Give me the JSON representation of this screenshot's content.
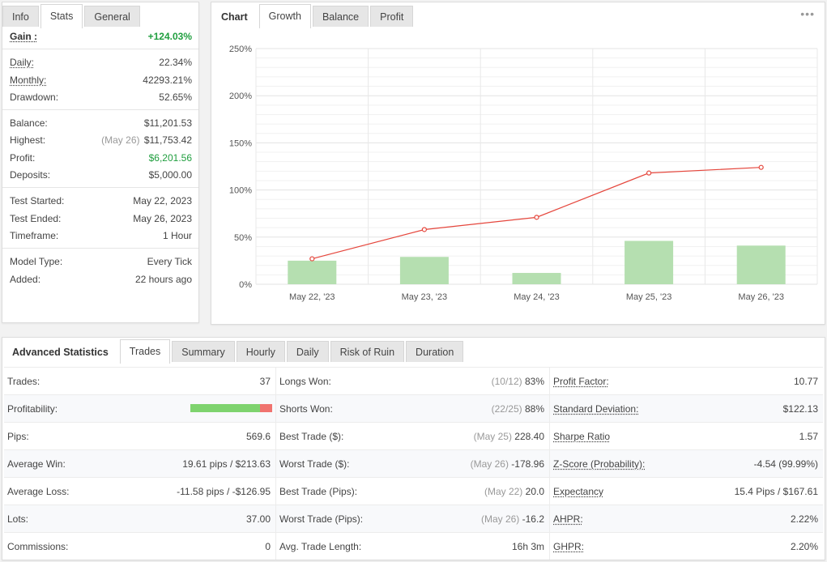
{
  "left_panel": {
    "tabs": [
      "Info",
      "Stats",
      "General"
    ],
    "active_tab": "Stats",
    "gain": {
      "label": "Gain :",
      "value": "+124.03%"
    },
    "daily": {
      "label": "Daily:",
      "value": "22.34%"
    },
    "monthly": {
      "label": "Monthly:",
      "value": "42293.21%"
    },
    "drawdown": {
      "label": "Drawdown:",
      "value": "52.65%"
    },
    "balance": {
      "label": "Balance:",
      "value": "$11,201.53"
    },
    "highest": {
      "label": "Highest:",
      "date": "(May 26)",
      "value": "$11,753.42"
    },
    "profit": {
      "label": "Profit:",
      "value": "$6,201.56"
    },
    "deposits": {
      "label": "Deposits:",
      "value": "$5,000.00"
    },
    "test_started": {
      "label": "Test Started:",
      "value": "May 22, 2023"
    },
    "test_ended": {
      "label": "Test Ended:",
      "value": "May 26, 2023"
    },
    "timeframe": {
      "label": "Timeframe:",
      "value": "1 Hour"
    },
    "model_type": {
      "label": "Model Type:",
      "value": "Every Tick"
    },
    "added": {
      "label": "Added:",
      "value": "22 hours ago"
    }
  },
  "chart_panel": {
    "tabs": [
      "Chart",
      "Growth",
      "Balance",
      "Profit"
    ],
    "active_tab": "Growth",
    "menu_icon": "more-dots-icon"
  },
  "chart_data": {
    "type": "bar",
    "categories": [
      "May 22, '23",
      "May 23, '23",
      "May 24, '23",
      "May 25, '23",
      "May 26, '23"
    ],
    "series": [
      {
        "type": "bar",
        "values": [
          25,
          29,
          12,
          46,
          41
        ],
        "color": "#b5dfb0"
      },
      {
        "type": "line",
        "values": [
          27,
          58,
          71,
          118,
          124
        ],
        "color": "#e5463c"
      }
    ],
    "yticks": [
      "0%",
      "50%",
      "100%",
      "150%",
      "200%",
      "250%"
    ],
    "ylim": [
      0,
      250
    ],
    "grid": true
  },
  "advanced": {
    "title": "Advanced Statistics",
    "tabs": [
      "Trades",
      "Summary",
      "Hourly",
      "Daily",
      "Risk of Ruin",
      "Duration"
    ],
    "active_tab": "Trades",
    "rows": [
      [
        {
          "label": "Trades:",
          "value": "37"
        },
        {
          "label": "Longs Won:",
          "muted": "(10/12)",
          "value": "83%"
        },
        {
          "label": "Profit Factor:",
          "value": "10.77",
          "underline": true
        }
      ],
      [
        {
          "label": "Profitability:",
          "bar_pct": 85
        },
        {
          "label": "Shorts Won:",
          "muted": "(22/25)",
          "value": "88%"
        },
        {
          "label": "Standard Deviation:",
          "value": "$122.13",
          "underline": true
        }
      ],
      [
        {
          "label": "Pips:",
          "value": "569.6"
        },
        {
          "label": "Best Trade ($):",
          "muted": "(May 25)",
          "value": "228.40"
        },
        {
          "label": "Sharpe Ratio",
          "value": "1.57",
          "underline": true
        }
      ],
      [
        {
          "label": "Average Win:",
          "value": "19.61 pips / $213.63"
        },
        {
          "label": "Worst Trade ($):",
          "muted": "(May 26)",
          "value": "-178.96"
        },
        {
          "label": "Z-Score (Probability):",
          "value": "-4.54 (99.99%)",
          "underline": true
        }
      ],
      [
        {
          "label": "Average Loss:",
          "value": "-11.58 pips / -$126.95"
        },
        {
          "label": "Best Trade (Pips):",
          "muted": "(May 22)",
          "value": "20.0"
        },
        {
          "label": "Expectancy",
          "value": "15.4 Pips / $167.61",
          "underline": true
        }
      ],
      [
        {
          "label": "Lots:",
          "value": "37.00"
        },
        {
          "label": "Worst Trade (Pips):",
          "muted": "(May 26)",
          "value": "-16.2"
        },
        {
          "label": "AHPR:",
          "value": "2.22%",
          "underline": true
        }
      ],
      [
        {
          "label": "Commissions:",
          "value": "0"
        },
        {
          "label": "Avg. Trade Length:",
          "value": "16h 3m"
        },
        {
          "label": "GHPR:",
          "value": "2.20%",
          "underline": true
        }
      ]
    ]
  }
}
